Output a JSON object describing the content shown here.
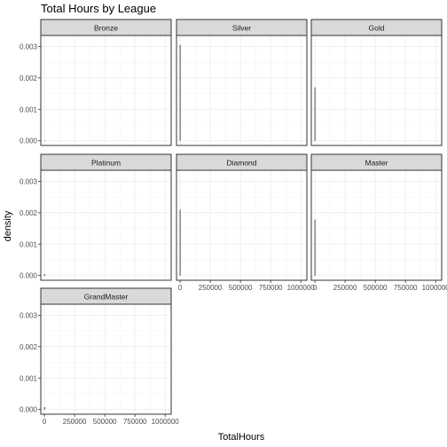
{
  "chart_data": {
    "type": "line",
    "subtype": "density-facets",
    "title": "Total Hours by League",
    "xlabel": "TotalHours",
    "ylabel": "density",
    "xlim": [
      -30000,
      1050000
    ],
    "ylim": [
      -0.00015,
      0.00335
    ],
    "x_ticks": [
      0,
      250000,
      500000,
      750000,
      1000000
    ],
    "x_tick_labels": [
      "0",
      "250000",
      "500000",
      "750000",
      "1000000"
    ],
    "y_ticks": [
      0,
      0.001,
      0.002,
      0.003
    ],
    "y_tick_labels": [
      "0.000",
      "0.001",
      "0.002",
      "0.003"
    ],
    "grid": true,
    "panels": [
      {
        "name": "Bronze",
        "series": [
          {
            "x": [
              0,
              2000,
              4000
            ],
            "y": [
              0,
              0,
              0
            ]
          }
        ]
      },
      {
        "name": "Silver",
        "series": [
          {
            "x": [
              1,
              2,
              3
            ],
            "y": [
              0,
              0.00305,
              0
            ]
          }
        ]
      },
      {
        "name": "Gold",
        "series": [
          {
            "x": [
              1,
              2,
              3
            ],
            "y": [
              0,
              0.0017,
              0
            ]
          }
        ]
      },
      {
        "name": "Platinum",
        "series": [
          {
            "x": [
              0,
              1000,
              2000
            ],
            "y": [
              0,
              5e-05,
              0
            ]
          }
        ]
      },
      {
        "name": "Diamond",
        "series": [
          {
            "x": [
              1,
              2,
              3
            ],
            "y": [
              0,
              0.0021,
              0
            ]
          }
        ]
      },
      {
        "name": "Master",
        "series": [
          {
            "x": [
              1,
              2,
              3
            ],
            "y": [
              0,
              0.00178,
              0
            ]
          }
        ]
      },
      {
        "name": "GrandMaster",
        "series": [
          {
            "x": [
              0,
              1000,
              2000
            ],
            "y": [
              0,
              8e-05,
              0
            ]
          }
        ]
      }
    ]
  }
}
